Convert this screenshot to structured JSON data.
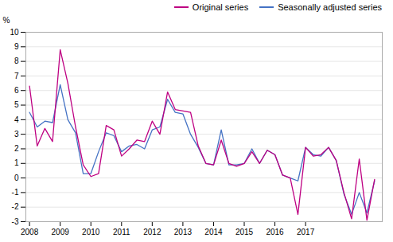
{
  "chart_data": {
    "type": "line",
    "x": [
      2008,
      2008.25,
      2008.5,
      2008.75,
      2009,
      2009.25,
      2009.5,
      2009.75,
      2010,
      2010.25,
      2010.5,
      2010.75,
      2011,
      2011.25,
      2011.5,
      2011.75,
      2012,
      2012.25,
      2012.5,
      2012.75,
      2013,
      2013.25,
      2013.5,
      2013.75,
      2014,
      2014.25,
      2014.5,
      2014.75,
      2015,
      2015.25,
      2015.5,
      2015.75,
      2016,
      2016.25,
      2016.5,
      2016.75,
      2017,
      2017.25,
      2017.5,
      2017.75,
      2018,
      2018.25,
      2018.5,
      2018.75,
      2019,
      2019.25
    ],
    "series": [
      {
        "name": "Seasonally adjusted series",
        "color": "#4472c4",
        "values": [
          4.5,
          3.5,
          3.9,
          3.8,
          6.4,
          4.0,
          3.1,
          0.3,
          0.3,
          1.8,
          3.1,
          2.9,
          1.8,
          2.2,
          2.3,
          2.0,
          3.3,
          3.5,
          5.4,
          4.5,
          4.4,
          3.0,
          2.1,
          1.0,
          0.9,
          3.3,
          0.9,
          0.9,
          1.0,
          2.0,
          1.0,
          1.9,
          1.6,
          0.2,
          0.0,
          -0.2,
          2.1,
          1.6,
          1.5,
          2.1,
          1.2,
          -1.1,
          -2.5,
          -1.0,
          -2.4,
          -0.2
        ]
      },
      {
        "name": "Original series",
        "color": "#be0082",
        "values": [
          6.3,
          2.2,
          3.4,
          2.5,
          8.8,
          6.5,
          3.5,
          0.9,
          0.1,
          0.3,
          3.6,
          3.3,
          1.5,
          2.0,
          2.6,
          2.5,
          3.9,
          3.0,
          5.9,
          4.7,
          4.6,
          4.5,
          2.2,
          1.0,
          0.9,
          2.6,
          1.0,
          0.8,
          1.0,
          1.8,
          1.0,
          1.9,
          1.6,
          0.2,
          0.0,
          -2.5,
          2.1,
          1.5,
          1.6,
          2.1,
          1.2,
          -1.0,
          -2.8,
          1.3,
          -2.9,
          -0.1
        ]
      }
    ],
    "ylabel": "%",
    "xlim": [
      2007.88,
      2019.5
    ],
    "xticks": [
      2008,
      2009,
      2010,
      2011,
      2012,
      2013,
      2014,
      2015,
      2016,
      2017
    ],
    "ylim": [
      -3,
      10
    ],
    "yticks": [
      -3,
      -2,
      -1,
      0,
      1,
      2,
      3,
      4,
      5,
      6,
      7,
      8,
      9,
      10
    ],
    "grid": true,
    "legend": "upper right"
  }
}
